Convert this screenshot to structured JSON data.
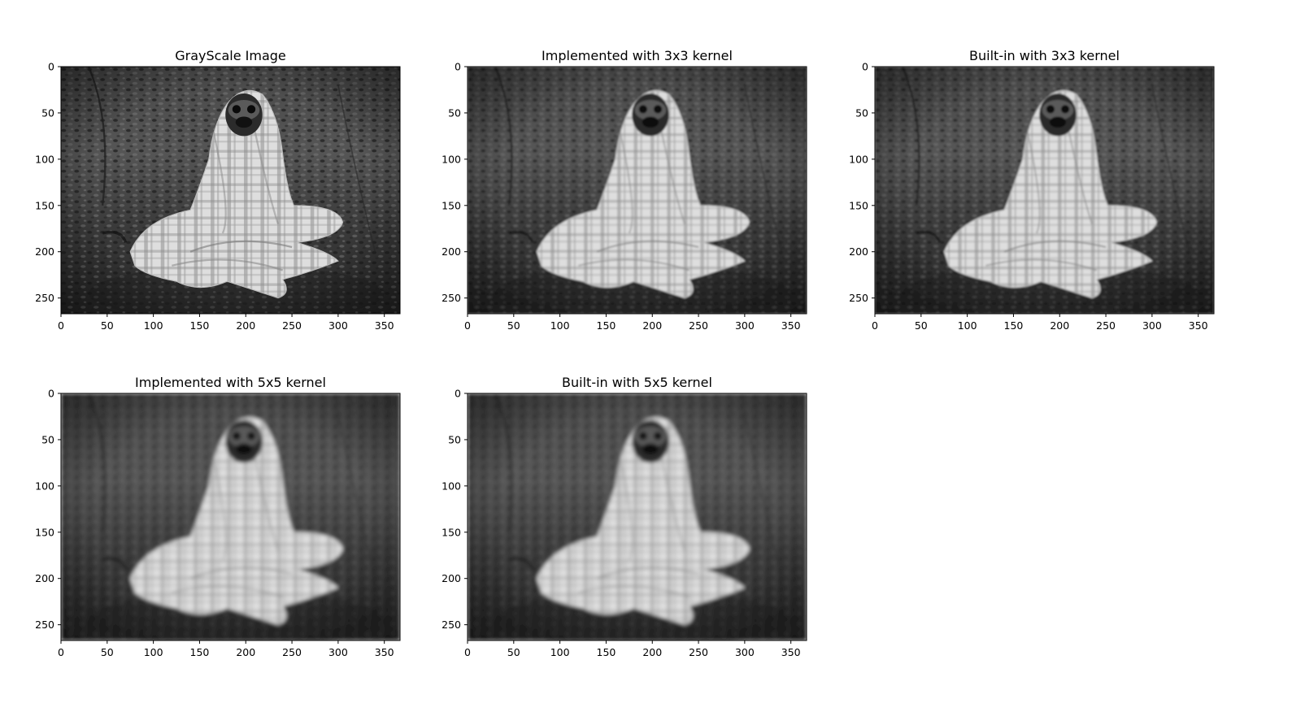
{
  "figure": {
    "background": "#ffffff",
    "colormap": "gray"
  },
  "chart_data": [
    {
      "type": "heatmap",
      "title": "GrayScale Image",
      "xlim": [
        0,
        367
      ],
      "ylim": [
        267,
        0
      ],
      "x_ticks": [
        0,
        50,
        100,
        150,
        200,
        250,
        300,
        350
      ],
      "y_ticks": [
        0,
        50,
        100,
        150,
        200,
        250
      ],
      "blur": 0,
      "image": "grayscale photograph of a pug wrapped in a plaid blanket sitting on a forest floor"
    },
    {
      "type": "heatmap",
      "title": "Implemented with 3x3 kernel",
      "xlim": [
        0,
        367
      ],
      "ylim": [
        267,
        0
      ],
      "x_ticks": [
        0,
        50,
        100,
        150,
        200,
        250,
        300,
        350
      ],
      "y_ticks": [
        0,
        50,
        100,
        150,
        200,
        250
      ],
      "blur": 1,
      "image": "slightly blurred grayscale photograph of a pug wrapped in a plaid blanket"
    },
    {
      "type": "heatmap",
      "title": "Built-in with 3x3 kernel",
      "xlim": [
        0,
        367
      ],
      "ylim": [
        267,
        0
      ],
      "x_ticks": [
        0,
        50,
        100,
        150,
        200,
        250,
        300,
        350
      ],
      "y_ticks": [
        0,
        50,
        100,
        150,
        200,
        250
      ],
      "blur": 1,
      "image": "slightly blurred grayscale photograph of a pug wrapped in a plaid blanket"
    },
    {
      "type": "heatmap",
      "title": "Implemented with 5x5 kernel",
      "xlim": [
        0,
        367
      ],
      "ylim": [
        267,
        0
      ],
      "x_ticks": [
        0,
        50,
        100,
        150,
        200,
        250,
        300,
        350
      ],
      "y_ticks": [
        0,
        50,
        100,
        150,
        200,
        250
      ],
      "blur": 2.2,
      "image": "more strongly blurred grayscale photograph of a pug wrapped in a plaid blanket"
    },
    {
      "type": "heatmap",
      "title": "Built-in with 5x5 kernel",
      "xlim": [
        0,
        367
      ],
      "ylim": [
        267,
        0
      ],
      "x_ticks": [
        0,
        50,
        100,
        150,
        200,
        250,
        300,
        350
      ],
      "y_ticks": [
        0,
        50,
        100,
        150,
        200,
        250
      ],
      "blur": 2.2,
      "image": "more strongly blurred grayscale photograph of a pug wrapped in a plaid blanket"
    }
  ]
}
